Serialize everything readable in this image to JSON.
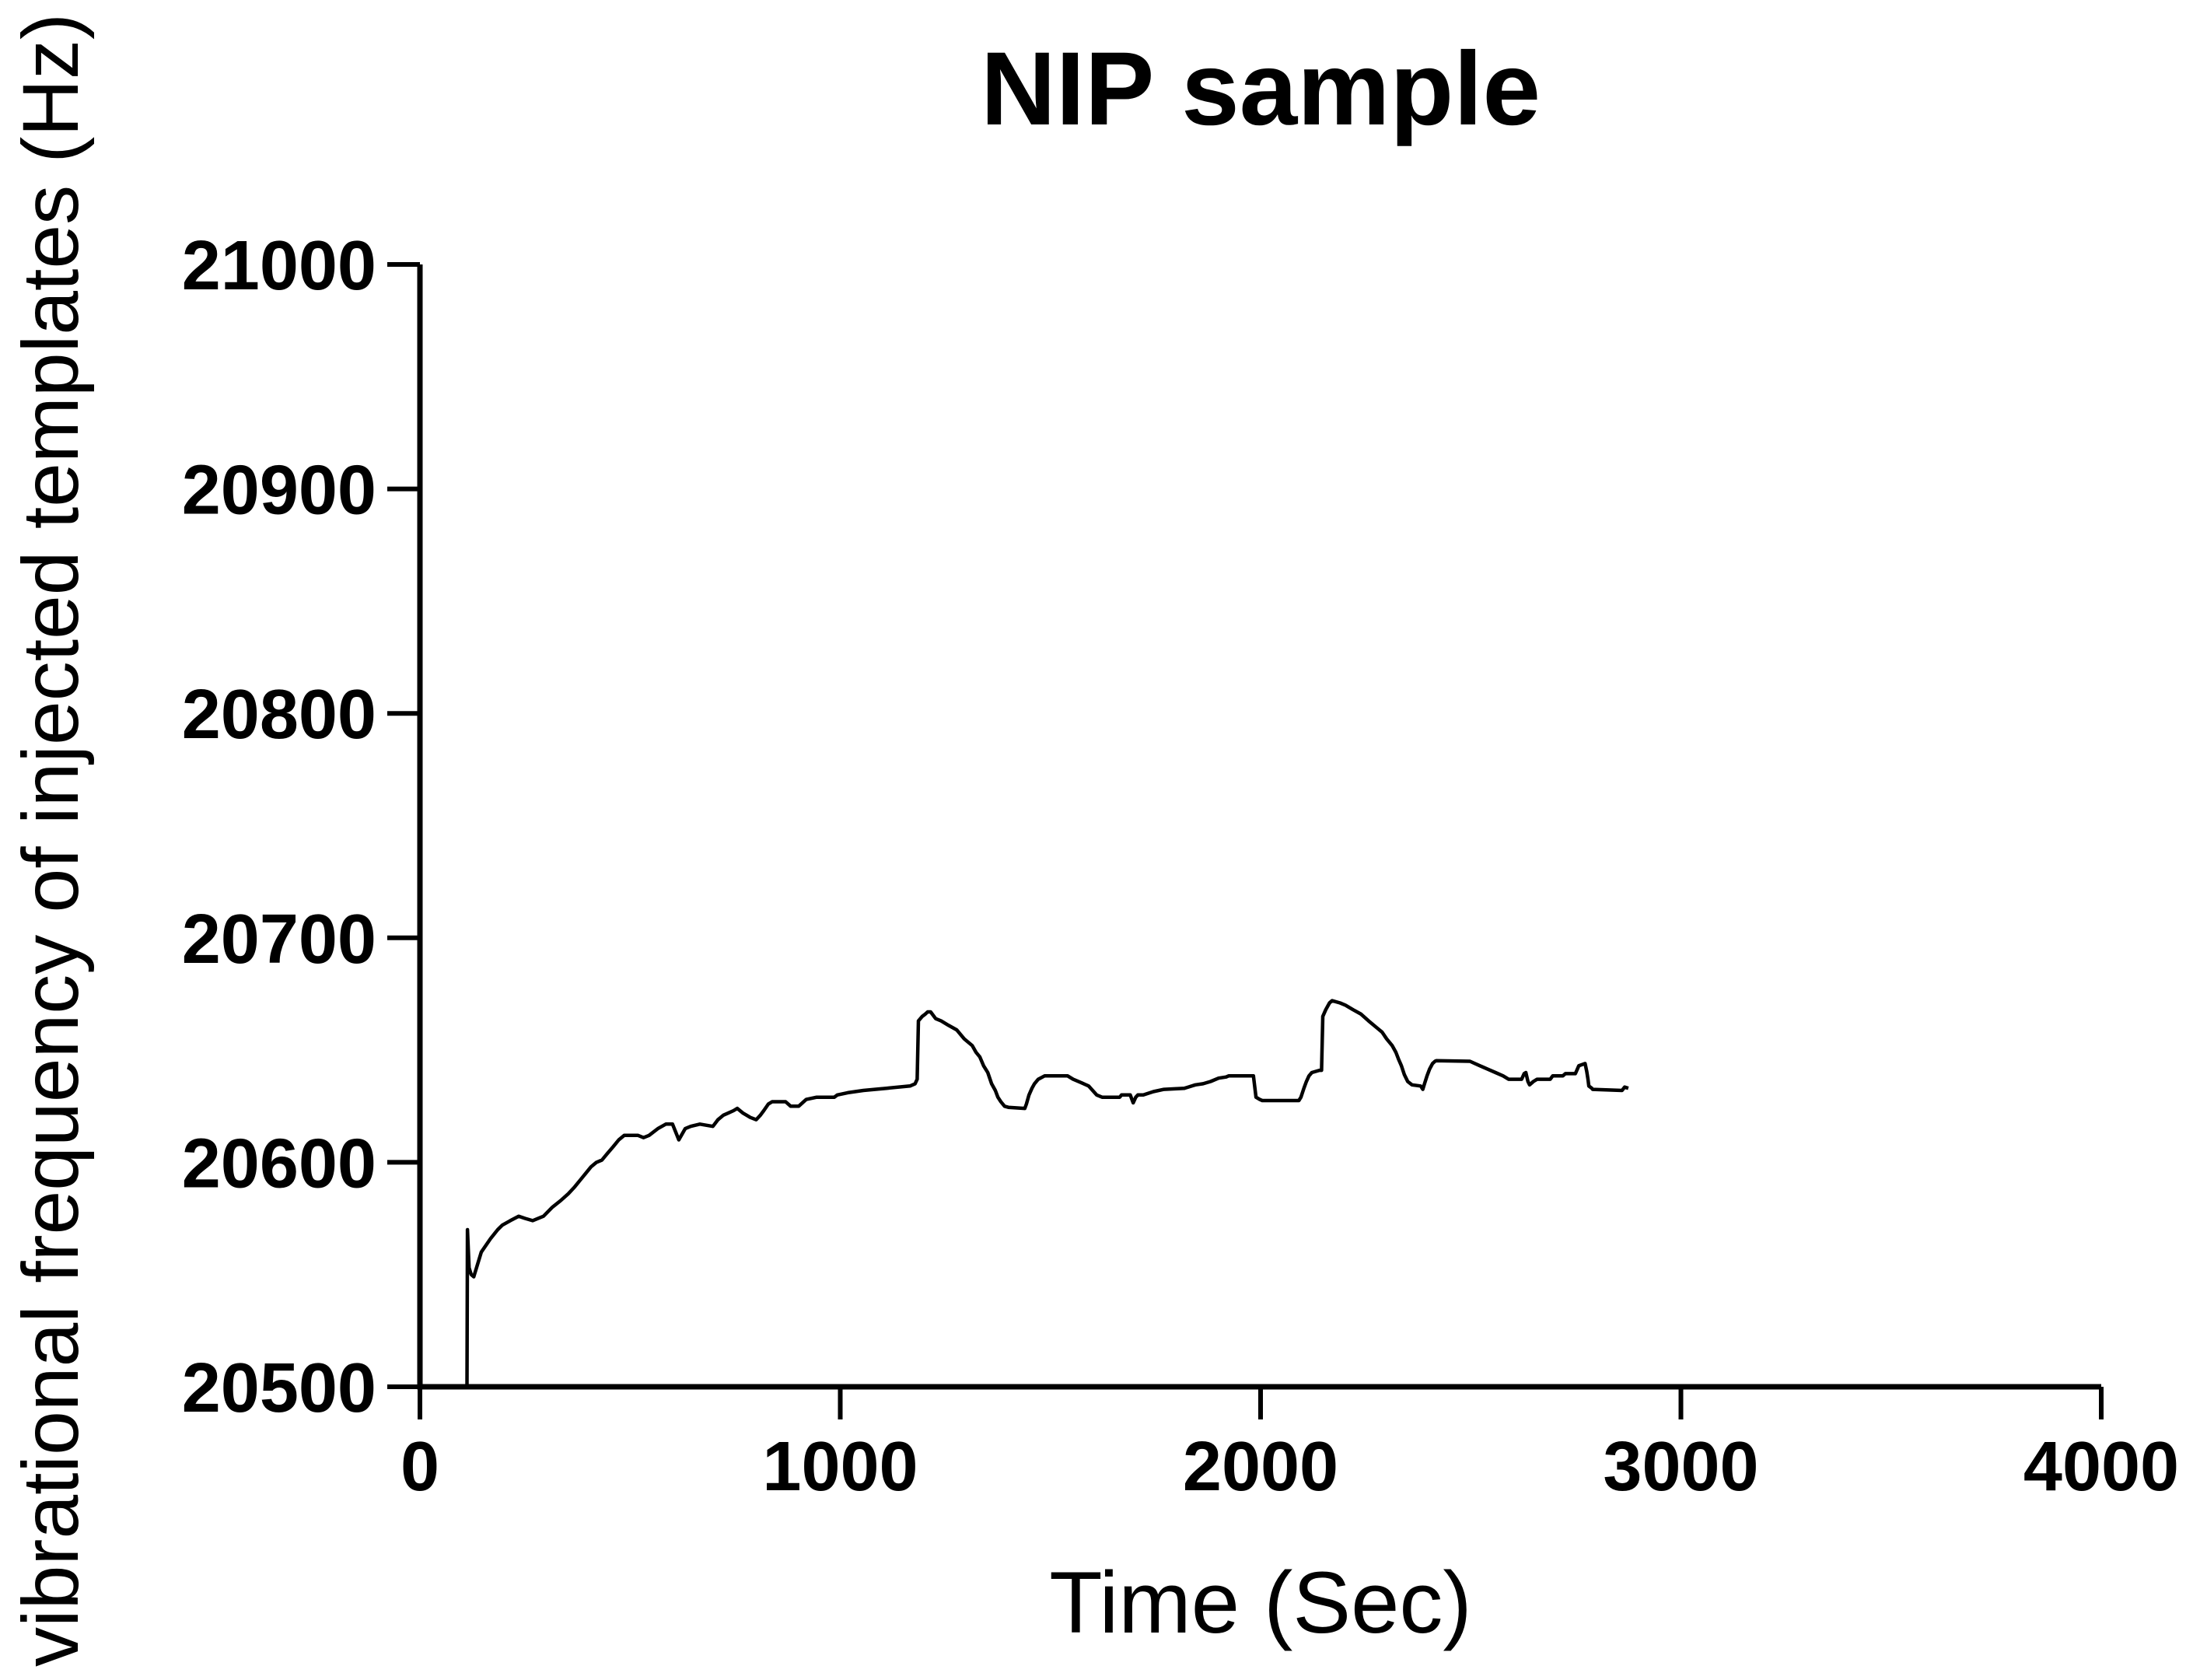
{
  "title": "NIP sample",
  "colors": {
    "background": "#ffffff",
    "axis": "#000000",
    "curve": "#000000",
    "text": "#000000"
  },
  "chart_data": {
    "type": "line",
    "title": "NIP sample",
    "xlabel": "Time (Sec)",
    "ylabel": "vibrational frequency of injected templates (Hz)",
    "xlim": [
      0,
      4000
    ],
    "ylim": [
      20500,
      21000
    ],
    "x_ticks": [
      0,
      1000,
      2000,
      3000,
      4000
    ],
    "y_ticks": [
      20500,
      20600,
      20700,
      20800,
      20900,
      21000
    ],
    "grid": false,
    "legend_position": "none",
    "series": [
      {
        "name": "NIP sample",
        "x": [
          112,
          113,
          117,
          122,
          128,
          146,
          168,
          185,
          196,
          215,
          235,
          250,
          268,
          294,
          315,
          335,
          353,
          368,
          381,
          394,
          407,
          420,
          433,
          446,
          460,
          473,
          486,
          499,
          519,
          532,
          545,
          566,
          585,
          601,
          616,
          631,
          644,
          666,
          697,
          709,
          722,
          734,
          746,
          755,
          768,
          777,
          786,
          800,
          810,
          818,
          829,
          838,
          870,
          882,
          901,
          907,
          919,
          944,
          986,
          993,
          1018,
          1055,
          1110,
          1166,
          1178,
          1183,
          1186,
          1195,
          1202,
          1208,
          1215,
          1227,
          1240,
          1258,
          1277,
          1295,
          1314,
          1323,
          1332,
          1341,
          1351,
          1360,
          1369,
          1375,
          1382,
          1391,
          1400,
          1439,
          1443,
          1449,
          1456,
          1462,
          1471,
          1486,
          1541,
          1554,
          1573,
          1591,
          1610,
          1623,
          1665,
          1669,
          1690,
          1697,
          1703,
          1708,
          1721,
          1745,
          1770,
          1819,
          1845,
          1863,
          1881,
          1900,
          1918,
          1924,
          1979,
          1983,
          1989,
          1998,
          2004,
          2091,
          2096,
          2103,
          2109,
          2115,
          2122,
          2140,
          2145,
          2148,
          2155,
          2164,
          2170,
          2189,
          2202,
          2220,
          2239,
          2257,
          2276,
          2289,
          2300,
          2313,
          2322,
          2328,
          2335,
          2342,
          2350,
          2360,
          2381,
          2386,
          2390,
          2396,
          2402,
          2409,
          2415,
          2418,
          2498,
          2522,
          2540,
          2559,
          2577,
          2590,
          2615,
          2621,
          2627,
          2631,
          2636,
          2640,
          2649,
          2658,
          2689,
          2695,
          2719,
          2725,
          2749,
          2757,
          2772,
          2776,
          2779,
          2781,
          2788,
          2790,
          2860,
          2866,
          2875
        ],
        "y": [
          20500,
          20570,
          20553,
          20550,
          20549,
          20560,
          20566,
          20570,
          20572,
          20574,
          20576,
          20575,
          20574,
          20576,
          20580,
          20583,
          20586,
          20589,
          20592,
          20595,
          20598,
          20600,
          20601,
          20604,
          20607,
          20610,
          20612,
          20612,
          20612,
          20611,
          20612,
          20615,
          20617,
          20617,
          20610,
          20615,
          20616,
          20617,
          20616,
          20619,
          20621,
          20622,
          20623,
          20624,
          20622,
          20621,
          20620,
          20619,
          20621,
          20623,
          20626,
          20627,
          20627,
          20625,
          20625,
          20626,
          20628,
          20629,
          20629,
          20630,
          20631,
          20632,
          20633,
          20634,
          20635,
          20637,
          20663,
          20665,
          20666,
          20667,
          20667,
          20664,
          20663,
          20661,
          20659,
          20655,
          20652,
          20649,
          20647,
          20643,
          20640,
          20635,
          20632,
          20629,
          20627,
          20625,
          20624.5,
          20624,
          20626,
          20630,
          20633,
          20635,
          20637,
          20638.5,
          20638.5,
          20637,
          20635.5,
          20634,
          20630,
          20629,
          20629,
          20630,
          20630,
          20626.5,
          20629,
          20630,
          20630,
          20631.5,
          20632.5,
          20633,
          20634.5,
          20635,
          20636,
          20637.5,
          20638,
          20638.5,
          20638.5,
          20638.5,
          20629,
          20628,
          20627.5,
          20627.5,
          20629,
          20633,
          20636,
          20638.5,
          20640,
          20641,
          20641,
          20665,
          20668,
          20671,
          20672,
          20671,
          20670,
          20668,
          20666,
          20663,
          20660,
          20658,
          20655,
          20652,
          20649,
          20646,
          20643,
          20639,
          20636,
          20634.5,
          20634,
          20632.5,
          20635,
          20638.5,
          20641.5,
          20644,
          20645,
          20645.3,
          20645,
          20643,
          20641.5,
          20640,
          20638.5,
          20637,
          20637,
          20637,
          20639.5,
          20640,
          20636,
          20634.5,
          20636,
          20637,
          20637,
          20638.5,
          20638.5,
          20639.5,
          20639.5,
          20643,
          20644,
          20640.5,
          20637,
          20634,
          20633,
          20632.5,
          20632,
          20633.5,
          20633
        ]
      }
    ]
  }
}
